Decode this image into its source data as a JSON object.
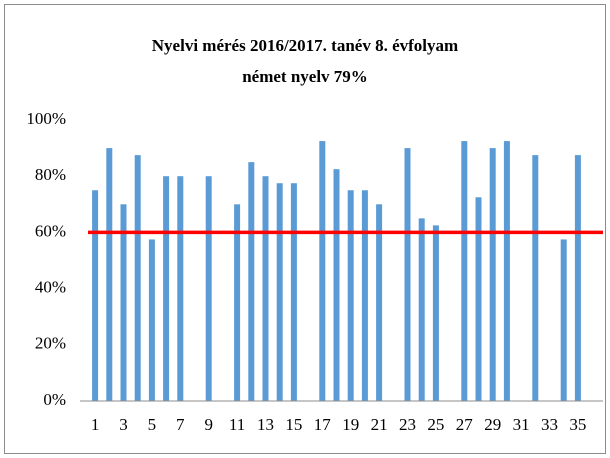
{
  "chart_data": {
    "type": "bar",
    "title": "Nyelvi mérés 2016/2017. tanév 8. évfolyam",
    "subtitle": "német nyelv 79%",
    "categories": [
      "1",
      null,
      "3",
      null,
      "5",
      null,
      "7",
      null,
      "9",
      null,
      "11",
      null,
      "13",
      null,
      "15",
      null,
      "17",
      null,
      "19",
      null,
      "21",
      null,
      "23",
      null,
      "25",
      null,
      "27",
      null,
      "29",
      null,
      "31",
      null,
      "33",
      null,
      "35"
    ],
    "values": [
      75,
      90,
      70,
      87.5,
      57.5,
      80,
      80,
      null,
      80,
      null,
      70,
      85,
      80,
      77.5,
      77.5,
      null,
      92.5,
      82.5,
      75,
      75,
      70,
      null,
      90,
      65,
      62.5,
      null,
      92.5,
      72.5,
      90,
      92.5,
      null,
      87.5,
      null,
      57.5,
      87.5
    ],
    "color": "#5b9bd5",
    "reference_line": {
      "value": 60,
      "color": "#ff0000"
    },
    "ylim": [
      0,
      100
    ],
    "yticks": [
      {
        "value": 0,
        "label": "0%"
      },
      {
        "value": 20,
        "label": "20%"
      },
      {
        "value": 40,
        "label": "40%"
      },
      {
        "value": 60,
        "label": "60%"
      },
      {
        "value": 80,
        "label": "80%"
      },
      {
        "value": 100,
        "label": "100%"
      }
    ],
    "grid": false
  }
}
